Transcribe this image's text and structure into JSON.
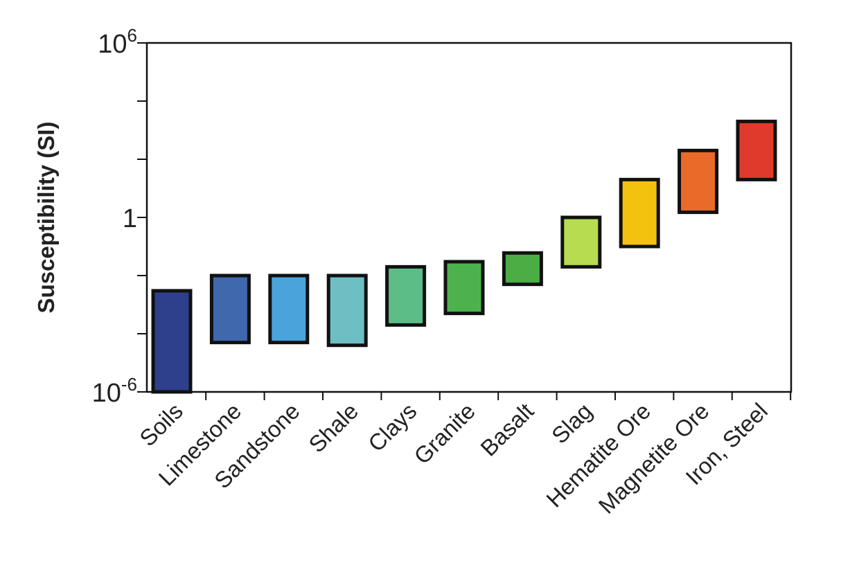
{
  "chart_data": {
    "type": "bar",
    "ylabel": "Susceptibility (SI)",
    "yscale": "log",
    "ylim": [
      1e-06,
      1000000
    ],
    "ytick_labels": [
      {
        "value": 1000000,
        "base": "10",
        "exp": "6"
      },
      {
        "value": 1,
        "base": "1",
        "exp": ""
      },
      {
        "value": 1e-06,
        "base": "10",
        "exp": "-6"
      }
    ],
    "categories": [
      "Soils",
      "Limestone",
      "Sandstone",
      "Shale",
      "Clays",
      "Granite",
      "Basalt",
      "Slag",
      "Hematite Ore",
      "Magnetite Ore",
      "Iron, Steel"
    ],
    "series": [
      {
        "low": [
          1e-06,
          5e-05,
          5e-05,
          4e-05,
          0.0002,
          0.0005,
          0.005,
          0.02,
          0.1,
          1.5,
          20
        ],
        "high": [
          0.003,
          0.01,
          0.01,
          0.01,
          0.02,
          0.03,
          0.06,
          1,
          20,
          200,
          2000
        ],
        "colors": [
          "#2e3f8c",
          "#3f68ad",
          "#4aa4dc",
          "#6dbfc4",
          "#5dbd86",
          "#4db24e",
          "#4aae45",
          "#b8dc50",
          "#f3c20e",
          "#ea6a29",
          "#e03a2c"
        ]
      }
    ],
    "grid": false
  }
}
